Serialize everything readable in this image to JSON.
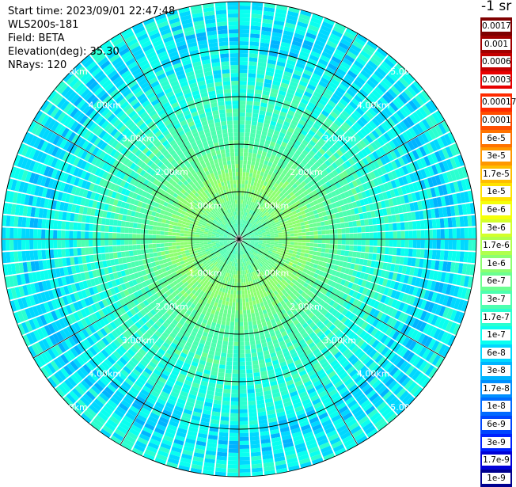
{
  "header": {
    "start_time": "Start time: 2023/09/01 22:47:48",
    "instrument": "WLS200s-181",
    "field": "Field: BETA",
    "elevation": "Elevation(deg): 35.30",
    "nrays": "NRays: 120"
  },
  "unit_label": "-1 sr",
  "colorbar": {
    "upper": [
      {
        "label": "0.0017",
        "color": "#7f0000"
      },
      {
        "label": "0.001",
        "color": "#a00000"
      },
      {
        "label": "0.0006",
        "color": "#c40000"
      },
      {
        "label": "0.0003",
        "color": "#e80000"
      }
    ],
    "lower": [
      {
        "label": "0.00017",
        "color": "#ff2a00"
      },
      {
        "label": "0.0001",
        "color": "#ff4d00"
      },
      {
        "label": "6e-5",
        "color": "#ff7300"
      },
      {
        "label": "3e-5",
        "color": "#ff9800"
      },
      {
        "label": "1.7e-5",
        "color": "#ffbd00"
      },
      {
        "label": "1e-5",
        "color": "#ffe200"
      },
      {
        "label": "6e-6",
        "color": "#f5ff0a"
      },
      {
        "label": "3e-6",
        "color": "#d3ff2b"
      },
      {
        "label": "1.7e-6",
        "color": "#b0ff4d"
      },
      {
        "label": "1e-6",
        "color": "#8cff70"
      },
      {
        "label": "6e-7",
        "color": "#6bff91"
      },
      {
        "label": "3e-7",
        "color": "#4dffb0"
      },
      {
        "label": "1.7e-7",
        "color": "#2bffd0"
      },
      {
        "label": "1e-7",
        "color": "#0affef"
      },
      {
        "label": "6e-8",
        "color": "#00d8ff"
      },
      {
        "label": "3e-8",
        "color": "#00b4ff"
      },
      {
        "label": "1.7e-8",
        "color": "#008fff"
      },
      {
        "label": "1e-8",
        "color": "#006aff"
      },
      {
        "label": "6e-9",
        "color": "#0046ff"
      },
      {
        "label": "3e-9",
        "color": "#0022ff"
      },
      {
        "label": "1.7e-9",
        "color": "#0000d8"
      },
      {
        "label": "1e-9",
        "color": "#00008f"
      }
    ]
  },
  "chart_data": {
    "type": "heatmap",
    "projection": "polar (PPI scan)",
    "field": "BETA",
    "nrays": 120,
    "range_rings_km": [
      1.0,
      2.0,
      3.0,
      4.0,
      5.0
    ],
    "ring_labels": [
      "1.00km",
      "2.00km",
      "3.00km",
      "4.00km",
      "5.00km"
    ],
    "spokes_deg": [
      0,
      30,
      60,
      90,
      120,
      150,
      180,
      210,
      240,
      270,
      300,
      330
    ],
    "max_range_km": 5.0,
    "radial_profile_bins_approx": [
      {
        "range_km": 0.3,
        "value": "3e-7"
      },
      {
        "range_km": 0.7,
        "value": "6e-7"
      },
      {
        "range_km": 1.2,
        "value": "1e-6"
      },
      {
        "range_km": 1.6,
        "value": "6e-7"
      },
      {
        "range_km": 2.2,
        "value": "3e-7"
      },
      {
        "range_km": 3.0,
        "value": "1.7e-7"
      },
      {
        "range_km": 3.7,
        "value": "1e-7"
      },
      {
        "range_km": 4.3,
        "value": "6e-8"
      },
      {
        "range_km": 4.8,
        "value": "1e-7"
      }
    ]
  }
}
